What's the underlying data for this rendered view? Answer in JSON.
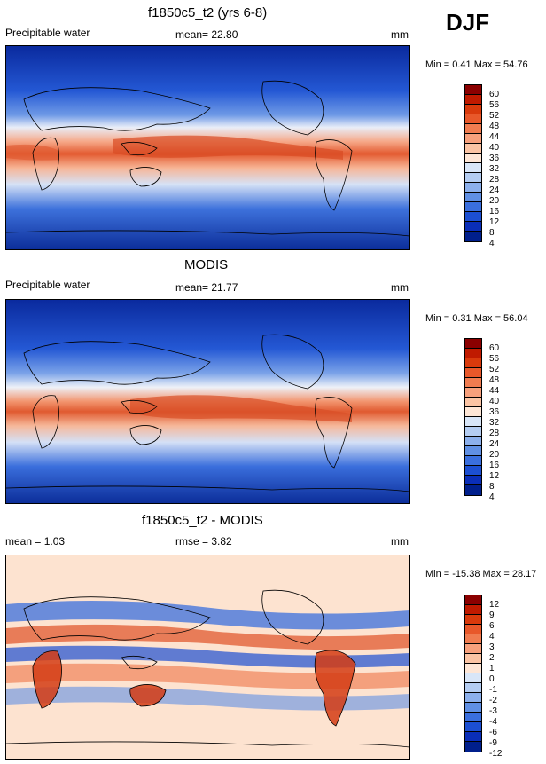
{
  "season": "DJF",
  "units": "mm",
  "panels": [
    {
      "title": "f1850c5_t2 (yrs 6-8)",
      "left_label": "Precipitable water",
      "stat_label": "mean=  22.80",
      "minmax": "Min =  0.41 Max =  54.76",
      "levels": [
        "60",
        "56",
        "52",
        "48",
        "44",
        "40",
        "36",
        "32",
        "28",
        "24",
        "20",
        "16",
        "12",
        "8",
        "4"
      ],
      "colors": [
        "#8b0000",
        "#c01a00",
        "#d93a0c",
        "#e8582a",
        "#f07c50",
        "#f7a07c",
        "#fbc4a4",
        "#fde6d6",
        "#d8e6f8",
        "#b4cdf2",
        "#8cb0ec",
        "#6090e4",
        "#3a6fde",
        "#1c4fd2",
        "#0a2eb8",
        "#001f8c"
      ]
    },
    {
      "title": "MODIS",
      "left_label": "Precipitable water",
      "stat_label": "mean=  21.77",
      "minmax": "Min =  0.31 Max =  56.04",
      "levels": [
        "60",
        "56",
        "52",
        "48",
        "44",
        "40",
        "36",
        "32",
        "28",
        "24",
        "20",
        "16",
        "12",
        "8",
        "4"
      ],
      "colors": [
        "#8b0000",
        "#c01a00",
        "#d93a0c",
        "#e8582a",
        "#f07c50",
        "#f7a07c",
        "#fbc4a4",
        "#fde6d6",
        "#d8e6f8",
        "#b4cdf2",
        "#8cb0ec",
        "#6090e4",
        "#3a6fde",
        "#1c4fd2",
        "#0a2eb8",
        "#001f8c"
      ]
    },
    {
      "title": "f1850c5_t2 - MODIS",
      "left_label": "mean =   1.03",
      "stat_label": "rmse =   3.82",
      "minmax": "Min = -15.38 Max =  28.17",
      "levels": [
        "12",
        "9",
        "6",
        "4",
        "3",
        "2",
        "1",
        "0",
        "-1",
        "-2",
        "-3",
        "-4",
        "-6",
        "-9",
        "-12"
      ],
      "colors": [
        "#8b0000",
        "#c01a00",
        "#d93a0c",
        "#e8582a",
        "#f07c50",
        "#f7a07c",
        "#fbc4a4",
        "#fde6d6",
        "#d8e6f8",
        "#b4cdf2",
        "#8cb0ec",
        "#6090e4",
        "#3a6fde",
        "#1c4fd2",
        "#0a2eb8",
        "#001f8c"
      ]
    }
  ]
}
